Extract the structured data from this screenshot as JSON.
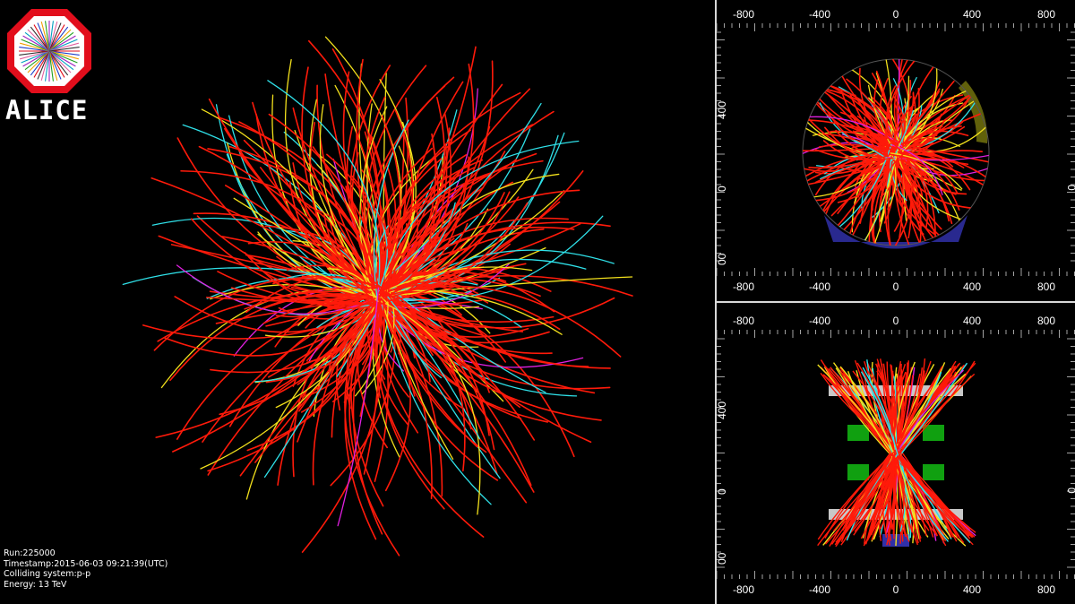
{
  "logo": {
    "text": "ALICE"
  },
  "event_info": {
    "run": "Run:225000",
    "timestamp": "Timestamp:2015-06-03 09:21:39(UTC)",
    "colliding_system": "Colliding system:p-p",
    "energy": "Energy: 13 TeV"
  },
  "top_view": {
    "x_ticks_top": [
      "-800",
      "-400",
      "0",
      "400",
      "800"
    ],
    "x_ticks_bottom": [
      "-800",
      "-400",
      "0",
      "400",
      "800"
    ],
    "y_ticks_left": [
      "400",
      "0",
      "00"
    ],
    "y_ticks_right": [
      "0"
    ]
  },
  "side_view": {
    "x_ticks_top": [
      "-800",
      "-400",
      "0",
      "400",
      "800"
    ],
    "x_ticks_bottom": [
      "-800",
      "-400",
      "0",
      "400",
      "800"
    ],
    "y_ticks_left": [
      "400",
      "0",
      "00"
    ],
    "y_ticks_right": [
      "0"
    ]
  },
  "colors": {
    "track_main": "#ff1a0a",
    "track_yellow": "#f2e01c",
    "track_cyan": "#2fe0e8",
    "track_magenta": "#e020e0",
    "detector_blue": "#3030a8",
    "detector_green": "#10a010",
    "frame": "#d8d8d8"
  }
}
